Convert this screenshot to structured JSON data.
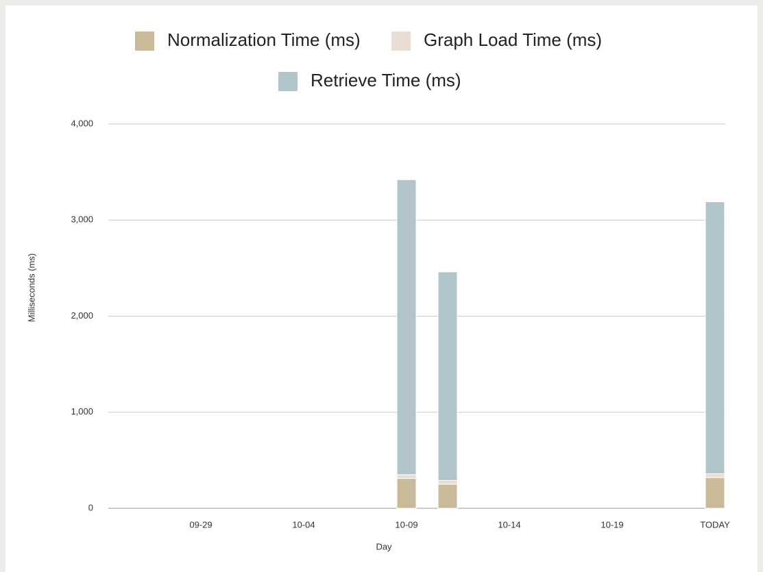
{
  "chart_data": {
    "type": "stacked_bar",
    "categories": [
      null,
      null,
      null,
      null,
      "09-29",
      null,
      null,
      null,
      null,
      "10-04",
      null,
      null,
      null,
      null,
      "10-09",
      null,
      null,
      null,
      null,
      "10-14",
      null,
      null,
      null,
      null,
      "10-19",
      null,
      null,
      null,
      null,
      "TODAY"
    ],
    "series": [
      {
        "name": "Normalization Time (ms)",
        "color": "#c9bb9a",
        "values": [
          null,
          null,
          null,
          null,
          null,
          null,
          null,
          null,
          null,
          null,
          null,
          null,
          null,
          null,
          310,
          null,
          250,
          null,
          null,
          null,
          null,
          null,
          null,
          null,
          null,
          null,
          null,
          null,
          null,
          320
        ]
      },
      {
        "name": "Graph Load Time (ms)",
        "color": "#e9ddd4",
        "values": [
          null,
          null,
          null,
          null,
          null,
          null,
          null,
          null,
          null,
          null,
          null,
          null,
          null,
          null,
          40,
          null,
          40,
          null,
          null,
          null,
          null,
          null,
          null,
          null,
          null,
          null,
          null,
          null,
          null,
          40
        ]
      },
      {
        "name": "Retrieve Time (ms)",
        "color": "#b0c4c9",
        "values": [
          null,
          null,
          null,
          null,
          null,
          null,
          null,
          null,
          null,
          null,
          null,
          null,
          null,
          null,
          3070,
          null,
          2170,
          null,
          null,
          null,
          null,
          null,
          null,
          null,
          null,
          null,
          null,
          null,
          null,
          2830
        ]
      }
    ],
    "x_label": "Day",
    "y_label": "Milliseconds (ms)",
    "ylim": [
      0,
      4000
    ],
    "yticks": [
      0,
      {
        "value": 1000,
        "label": "1,000"
      },
      {
        "value": 2000,
        "label": "2,000"
      },
      {
        "value": 3000,
        "label": "3,000"
      },
      {
        "value": 4000,
        "label": "4,000"
      }
    ],
    "grid": true
  }
}
